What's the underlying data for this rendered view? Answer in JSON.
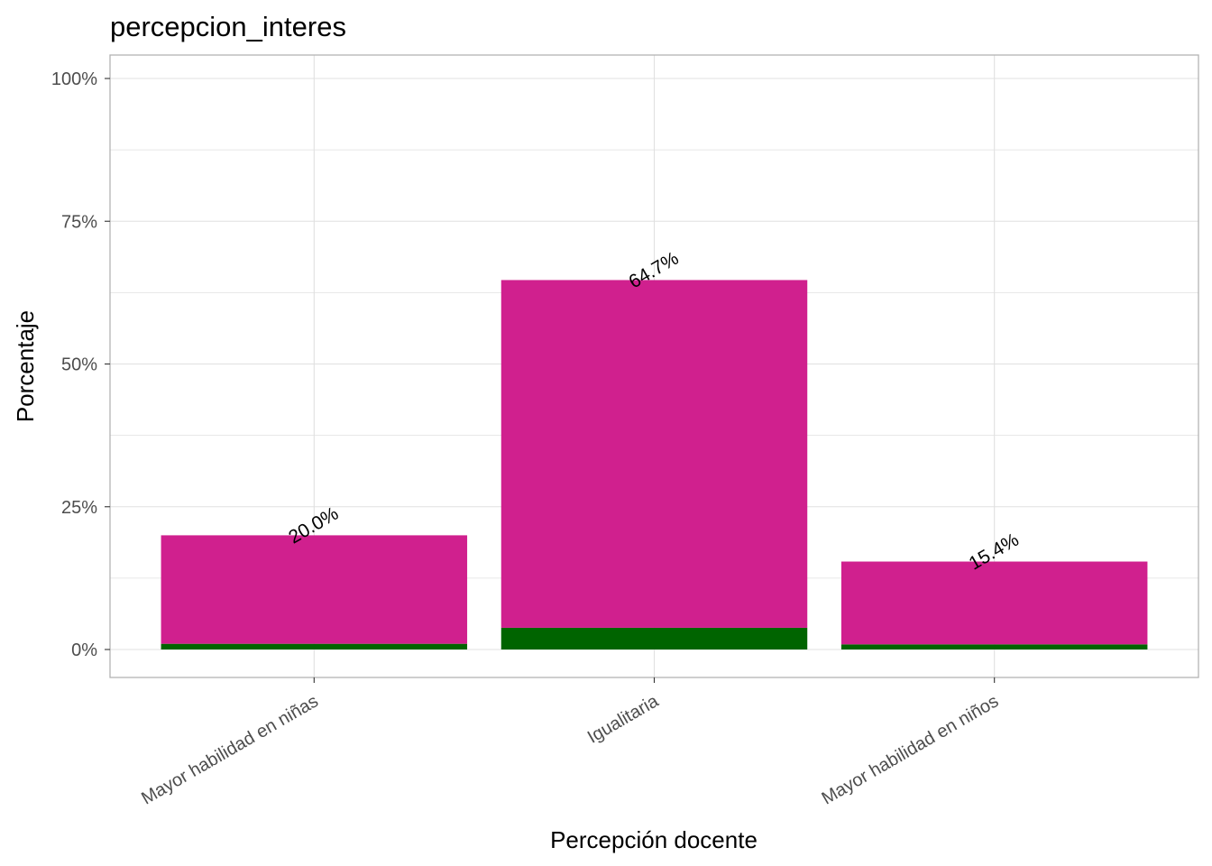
{
  "chart_data": {
    "type": "bar",
    "title": "percepcion_interes",
    "xlabel": "Percepción docente",
    "ylabel": "Porcentaje",
    "categories": [
      "Mayor habilidad en niñas",
      "Igualitaria",
      "Mayor habilidad en niños"
    ],
    "series": [
      {
        "values": [
          1.0,
          3.8,
          0.9
        ],
        "color": "#006400"
      },
      {
        "values": [
          19.0,
          60.9,
          14.5
        ],
        "color": "#D0208E"
      }
    ],
    "totals": [
      20.0,
      64.7,
      15.4
    ],
    "data_labels": [
      "20.0%",
      "64.7%",
      "15.4%"
    ],
    "yticks": [
      0,
      25,
      50,
      75,
      100
    ],
    "ytick_labels": [
      "0%",
      "25%",
      "50%",
      "75%",
      "100%"
    ],
    "ylim": [
      -5,
      104.8
    ],
    "grid": true,
    "legend": "none",
    "colors": {
      "panel_border": "#b3b3b3",
      "grid": "#e0e0e0",
      "tick_text": "#4d4d4d"
    }
  }
}
